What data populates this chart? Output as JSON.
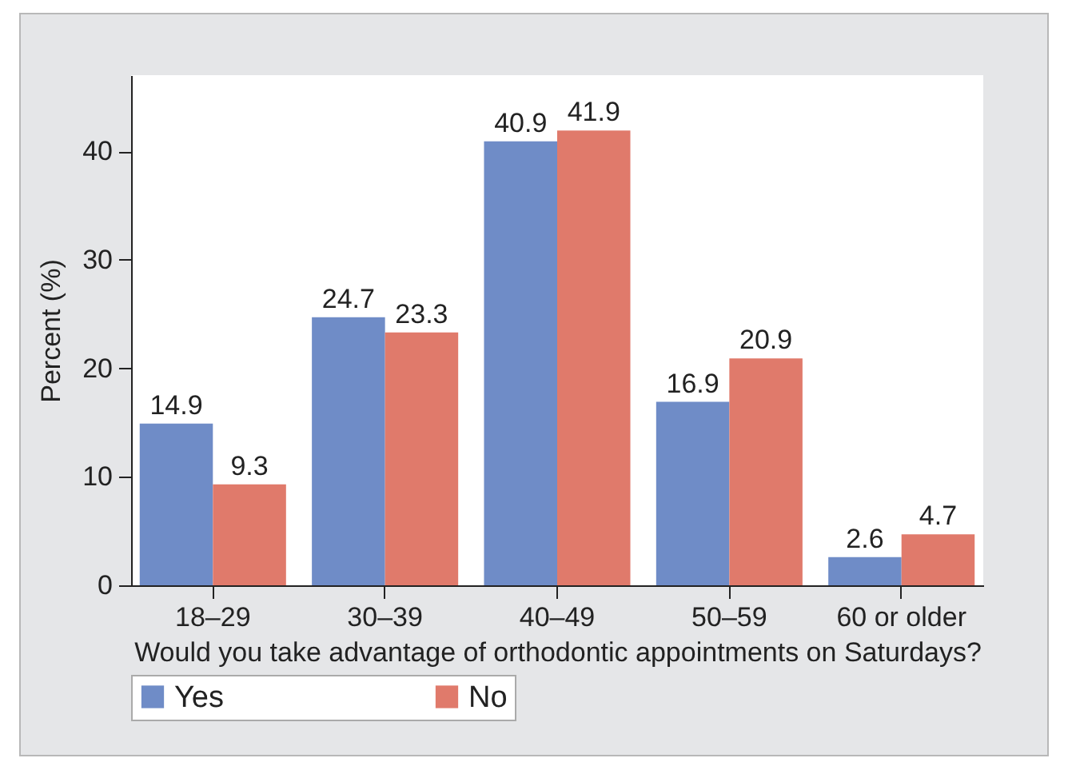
{
  "chart_data": {
    "type": "bar",
    "xlabel": "Would you take advantage of orthodontic appointments on Saturdays?",
    "ylabel": "Percent (%)",
    "categories": [
      "18–29",
      "30–39",
      "40–49",
      "50–59",
      "60 or older"
    ],
    "series": [
      {
        "name": "Yes",
        "color": "#6f8cc7",
        "values": [
          14.9,
          24.7,
          40.9,
          16.9,
          2.6
        ]
      },
      {
        "name": "No",
        "color": "#e07a6b",
        "values": [
          9.3,
          23.3,
          41.9,
          20.9,
          4.7
        ]
      }
    ],
    "ylim": [
      0,
      47
    ],
    "yticks": [
      0,
      10,
      20,
      30,
      40
    ],
    "grid": false,
    "legend": "bottom",
    "data_labels": true
  }
}
